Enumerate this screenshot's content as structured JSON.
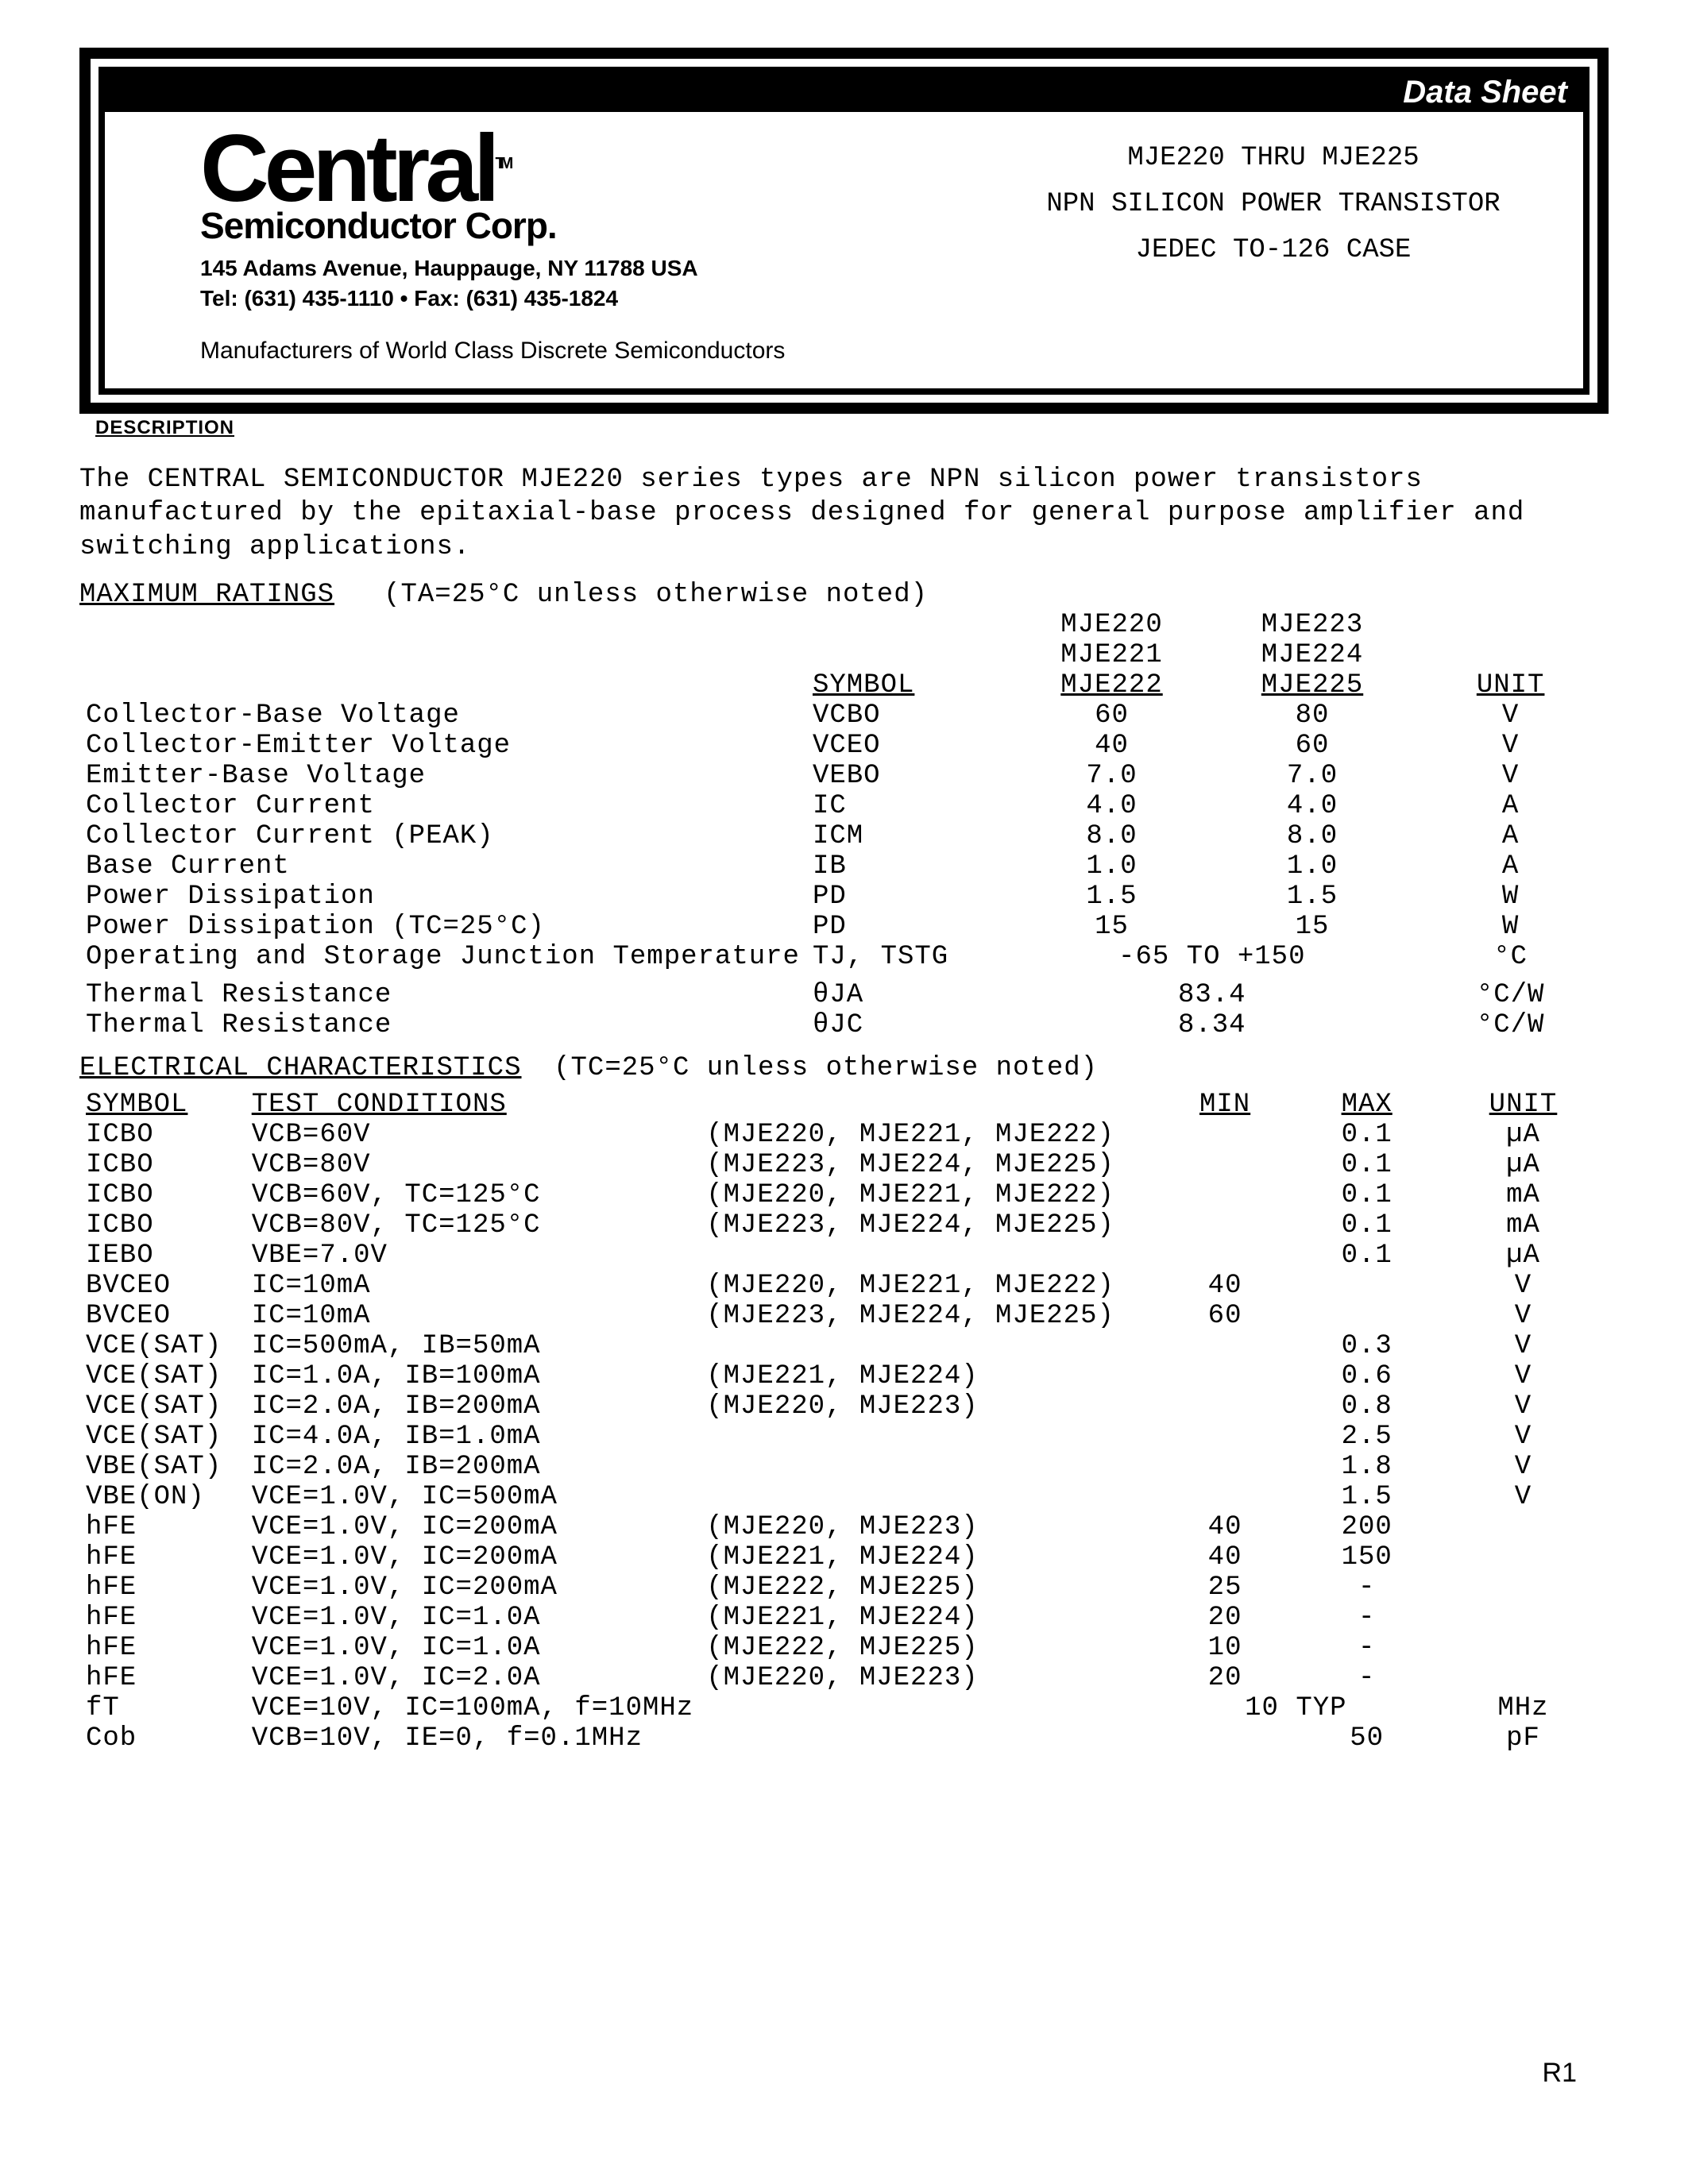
{
  "header": {
    "dataSheetLabel": "Data Sheet",
    "logoTop": "Central",
    "logoTM": "TM",
    "logoSub": "Semiconductor Corp.",
    "address1": "145 Adams Avenue, Hauppauge, NY  11788  USA",
    "address2": "Tel: (631) 435-1110  •  Fax: (631) 435-1824",
    "tagline": "Manufacturers of World Class Discrete Semiconductors",
    "partRange": "MJE220 THRU MJE225",
    "desc1": "NPN SILICON POWER TRANSISTOR",
    "desc2": "JEDEC TO-126 CASE"
  },
  "descHeader": "DESCRIPTION",
  "description": "The CENTRAL SEMICONDUCTOR MJE220 series types are NPN silicon power transistors manufactured by the epitaxial-base process designed for general purpose amplifier and switching applications.",
  "maxRatings": {
    "title": "MAXIMUM RATINGS",
    "cond": "(TA=25°C unless otherwise noted)",
    "colSymbol": "SYMBOL",
    "colGroupA": [
      "MJE220",
      "MJE221",
      "MJE222"
    ],
    "colGroupB": [
      "MJE223",
      "MJE224",
      "MJE225"
    ],
    "colUnit": "UNIT",
    "rows": [
      {
        "param": "Collector-Base Voltage",
        "sym": "VCBO",
        "a": "60",
        "b": "80",
        "unit": "V"
      },
      {
        "param": "Collector-Emitter Voltage",
        "sym": "VCEO",
        "a": "40",
        "b": "60",
        "unit": "V"
      },
      {
        "param": "Emitter-Base Voltage",
        "sym": "VEBO",
        "a": "7.0",
        "b": "7.0",
        "unit": "V"
      },
      {
        "param": "Collector Current",
        "sym": "IC",
        "a": "4.0",
        "b": "4.0",
        "unit": "A"
      },
      {
        "param": "Collector Current (PEAK)",
        "sym": "ICM",
        "a": "8.0",
        "b": "8.0",
        "unit": "A"
      },
      {
        "param": "Base Current",
        "sym": "IB",
        "a": "1.0",
        "b": "1.0",
        "unit": "A"
      },
      {
        "param": "Power Dissipation",
        "sym": "PD",
        "a": "1.5",
        "b": "1.5",
        "unit": "W"
      },
      {
        "param": "Power Dissipation (TC=25°C)",
        "sym": "PD",
        "a": "15",
        "b": "15",
        "unit": "W"
      },
      {
        "param": "Operating and Storage Junction Temperature",
        "sym": "TJ, TSTG",
        "span": "-65 TO +150",
        "unit": "°C"
      }
    ],
    "thermal": [
      {
        "param": "Thermal Resistance",
        "sym": "θJA",
        "span": "83.4",
        "unit": "°C/W"
      },
      {
        "param": "Thermal Resistance",
        "sym": "θJC",
        "span": "8.34",
        "unit": "°C/W"
      }
    ]
  },
  "electrical": {
    "title": "ELECTRICAL CHARACTERISTICS",
    "cond": "(TC=25°C unless otherwise noted)",
    "colSymbol": "SYMBOL",
    "colTest": "TEST CONDITIONS",
    "colMin": "MIN",
    "colMax": "MAX",
    "colUnit": "UNIT",
    "rows": [
      {
        "sym": "ICBO",
        "cond": "VCB=60V",
        "models": "(MJE220, MJE221, MJE222)",
        "min": "",
        "max": "0.1",
        "unit": "µA"
      },
      {
        "sym": "ICBO",
        "cond": "VCB=80V",
        "models": "(MJE223, MJE224, MJE225)",
        "min": "",
        "max": "0.1",
        "unit": "µA"
      },
      {
        "sym": "ICBO",
        "cond": "VCB=60V, TC=125°C",
        "models": "(MJE220, MJE221, MJE222)",
        "min": "",
        "max": "0.1",
        "unit": "mA"
      },
      {
        "sym": "ICBO",
        "cond": "VCB=80V, TC=125°C",
        "models": "(MJE223, MJE224, MJE225)",
        "min": "",
        "max": "0.1",
        "unit": "mA"
      },
      {
        "sym": "IEBO",
        "cond": "VBE=7.0V",
        "models": "",
        "min": "",
        "max": "0.1",
        "unit": "µA"
      },
      {
        "sym": "BVCEO",
        "cond": "IC=10mA",
        "models": "(MJE220, MJE221, MJE222)",
        "min": "40",
        "max": "",
        "unit": "V"
      },
      {
        "sym": "BVCEO",
        "cond": "IC=10mA",
        "models": "(MJE223, MJE224, MJE225)",
        "min": "60",
        "max": "",
        "unit": "V"
      },
      {
        "sym": "VCE(SAT)",
        "cond": "IC=500mA, IB=50mA",
        "models": "",
        "min": "",
        "max": "0.3",
        "unit": "V"
      },
      {
        "sym": "VCE(SAT)",
        "cond": "IC=1.0A, IB=100mA",
        "models": "(MJE221, MJE224)",
        "min": "",
        "max": "0.6",
        "unit": "V"
      },
      {
        "sym": "VCE(SAT)",
        "cond": "IC=2.0A, IB=200mA",
        "models": "(MJE220, MJE223)",
        "min": "",
        "max": "0.8",
        "unit": "V"
      },
      {
        "sym": "VCE(SAT)",
        "cond": "IC=4.0A, IB=1.0mA",
        "models": "",
        "min": "",
        "max": "2.5",
        "unit": "V"
      },
      {
        "sym": "VBE(SAT)",
        "cond": "IC=2.0A, IB=200mA",
        "models": "",
        "min": "",
        "max": "1.8",
        "unit": "V"
      },
      {
        "sym": "VBE(ON)",
        "cond": "VCE=1.0V, IC=500mA",
        "models": "",
        "min": "",
        "max": "1.5",
        "unit": "V"
      },
      {
        "sym": "hFE",
        "cond": "VCE=1.0V, IC=200mA",
        "models": "(MJE220, MJE223)",
        "min": "40",
        "max": "200",
        "unit": ""
      },
      {
        "sym": "hFE",
        "cond": "VCE=1.0V, IC=200mA",
        "models": "(MJE221, MJE224)",
        "min": "40",
        "max": "150",
        "unit": ""
      },
      {
        "sym": "hFE",
        "cond": "VCE=1.0V, IC=200mA",
        "models": "(MJE222, MJE225)",
        "min": "25",
        "max": "-",
        "unit": ""
      },
      {
        "sym": "hFE",
        "cond": "VCE=1.0V, IC=1.0A",
        "models": "(MJE221, MJE224)",
        "min": "20",
        "max": "-",
        "unit": ""
      },
      {
        "sym": "hFE",
        "cond": "VCE=1.0V, IC=1.0A",
        "models": "(MJE222, MJE225)",
        "min": "10",
        "max": "-",
        "unit": ""
      },
      {
        "sym": "hFE",
        "cond": "VCE=1.0V, IC=2.0A",
        "models": "(MJE220, MJE223)",
        "min": "20",
        "max": "-",
        "unit": ""
      },
      {
        "sym": "fT",
        "cond": "VCE=10V, IC=100mA, f=10MHz",
        "models": "",
        "min": "",
        "max": "",
        "typ": "10 TYP",
        "unit": "MHz"
      },
      {
        "sym": "Cob",
        "cond": "VCB=10V, IE=0, f=0.1MHz",
        "models": "",
        "min": "",
        "max": "50",
        "unit": "pF"
      }
    ]
  },
  "footer": "R1"
}
